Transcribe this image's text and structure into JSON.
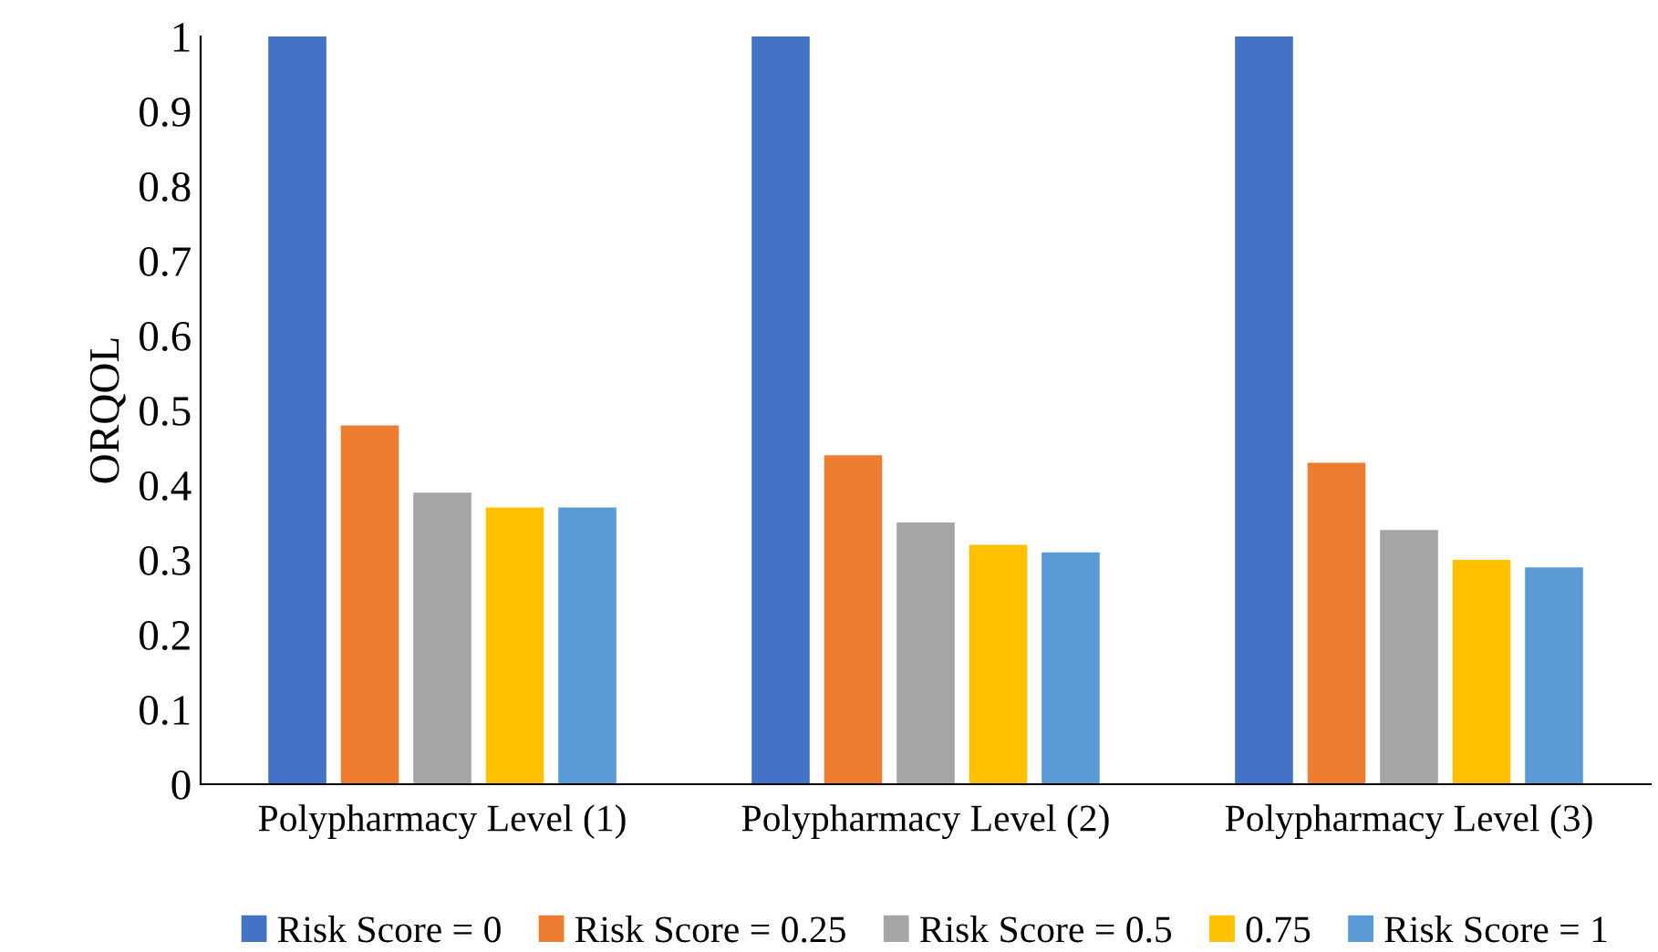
{
  "chart_data": {
    "type": "bar",
    "ylabel": "ORQOL",
    "categories": [
      "Polypharmacy Level (1)",
      "Polypharmacy Level (2)",
      "Polypharmacy Level (3)"
    ],
    "series": [
      {
        "name": "Risk Score = 0",
        "color": "#4472c4",
        "values": [
          1,
          1,
          1
        ]
      },
      {
        "name": "Risk Score = 0.25",
        "color": "#ed7d31",
        "values": [
          0.48,
          0.44,
          0.43
        ]
      },
      {
        "name": "Risk Score = 0.5",
        "color": "#a5a5a5",
        "values": [
          0.39,
          0.35,
          0.34
        ]
      },
      {
        "name": "0.75",
        "color": "#ffc000",
        "values": [
          0.37,
          0.32,
          0.3
        ]
      },
      {
        "name": "Risk Score = 1",
        "color": "#5b9bd5",
        "values": [
          0.37,
          0.31,
          0.29
        ]
      }
    ],
    "ylim": [
      0,
      1
    ],
    "yticks": [
      0,
      0.1,
      0.2,
      0.3,
      0.4,
      0.5,
      0.6,
      0.7,
      0.8,
      0.9,
      1
    ],
    "grid": false,
    "legend": "bottom"
  }
}
